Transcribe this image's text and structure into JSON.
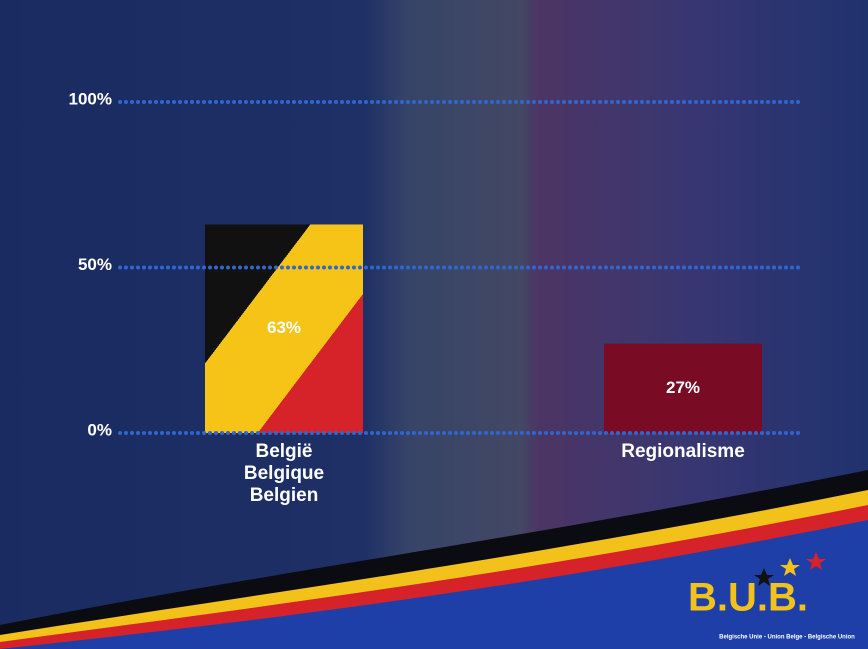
{
  "chart_data": {
    "type": "bar",
    "categories": [
      "België\nBelgique\nBelgien",
      "Regionalisme"
    ],
    "values": [
      63,
      27
    ],
    "value_labels": [
      "63%",
      "27%"
    ],
    "colors": [
      [
        "#111111",
        "#f6c417",
        "#d6232a"
      ],
      "#7a0b25"
    ],
    "ylim": [
      0,
      100
    ],
    "yticks": [
      {
        "value": 0,
        "label": "0%"
      },
      {
        "value": 50,
        "label": "50%"
      },
      {
        "value": 100,
        "label": "100%"
      }
    ],
    "grid": true
  },
  "logo": {
    "title": "B.U.B.",
    "subtitle": "Belgische Unie - Union Belge - Belgische Union"
  }
}
